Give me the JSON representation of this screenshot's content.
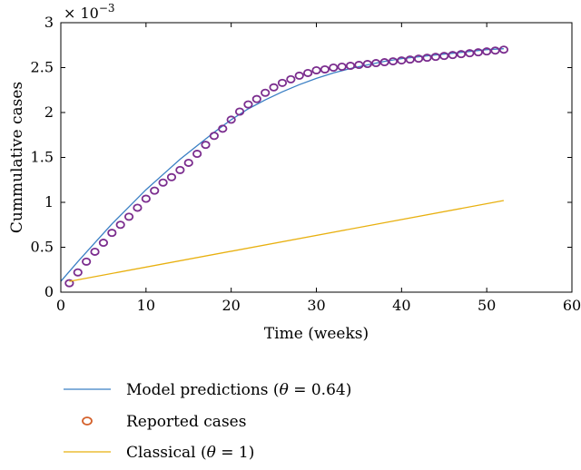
{
  "chart_data": {
    "type": "line",
    "title": "",
    "xlabel": "Time (weeks)",
    "ylabel": "Cummulative cases",
    "y_multiplier_label": "× 10",
    "y_multiplier_exponent": "−3",
    "xlim": [
      0,
      60
    ],
    "ylim": [
      0,
      3
    ],
    "x_ticks": [
      "0",
      "10",
      "20",
      "30",
      "40",
      "50",
      "60"
    ],
    "y_ticks": [
      "0",
      "0.5",
      "1",
      "1.5",
      "2",
      "2.5",
      "3"
    ],
    "grid": false,
    "legend_placement": "bottom",
    "series": [
      {
        "name": "Model predictions (θ = 0.64)",
        "kind": "line",
        "color": "#3a7fc4",
        "x": [
          0,
          2,
          4,
          6,
          8,
          10,
          12,
          14,
          16,
          18,
          20,
          22,
          24,
          26,
          28,
          30,
          32,
          34,
          36,
          38,
          40,
          42,
          44,
          46,
          48,
          50,
          52
        ],
        "y": [
          0.12,
          0.34,
          0.55,
          0.76,
          0.95,
          1.14,
          1.31,
          1.48,
          1.63,
          1.78,
          1.92,
          2.04,
          2.14,
          2.23,
          2.31,
          2.38,
          2.44,
          2.49,
          2.53,
          2.57,
          2.6,
          2.62,
          2.64,
          2.66,
          2.68,
          2.7,
          2.71
        ]
      },
      {
        "name": "Reported cases",
        "kind": "scatter",
        "color": "#7b2d8e",
        "x": [
          1,
          2,
          3,
          4,
          5,
          6,
          7,
          8,
          9,
          10,
          11,
          12,
          13,
          14,
          15,
          16,
          17,
          18,
          19,
          20,
          21,
          22,
          23,
          24,
          25,
          26,
          27,
          28,
          29,
          30,
          31,
          32,
          33,
          34,
          35,
          36,
          37,
          38,
          39,
          40,
          41,
          42,
          43,
          44,
          45,
          46,
          47,
          48,
          49,
          50,
          51,
          52
        ],
        "y": [
          0.1,
          0.22,
          0.34,
          0.45,
          0.55,
          0.66,
          0.75,
          0.84,
          0.94,
          1.04,
          1.13,
          1.22,
          1.28,
          1.36,
          1.44,
          1.54,
          1.64,
          1.74,
          1.82,
          1.92,
          2.01,
          2.09,
          2.15,
          2.22,
          2.28,
          2.33,
          2.37,
          2.41,
          2.44,
          2.47,
          2.48,
          2.5,
          2.51,
          2.52,
          2.53,
          2.54,
          2.55,
          2.56,
          2.57,
          2.58,
          2.59,
          2.6,
          2.61,
          2.62,
          2.63,
          2.64,
          2.65,
          2.66,
          2.67,
          2.68,
          2.69,
          2.7
        ]
      },
      {
        "name": "Classical (θ = 1)",
        "kind": "line",
        "color": "#e8b00f",
        "x": [
          1,
          52
        ],
        "y": [
          0.12,
          1.02
        ]
      }
    ],
    "legend": [
      {
        "label_prefix": "Model predictions (",
        "theta": "θ",
        "label_suffix": " = 0.64)",
        "kind": "line",
        "color": "#3a7fc4"
      },
      {
        "label_prefix": "Reported cases",
        "theta": "",
        "label_suffix": "",
        "kind": "marker",
        "color": "#d4602a"
      },
      {
        "label_prefix": "Classical (",
        "theta": "θ",
        "label_suffix": " = 1)",
        "kind": "line",
        "color": "#e8b00f"
      }
    ]
  }
}
